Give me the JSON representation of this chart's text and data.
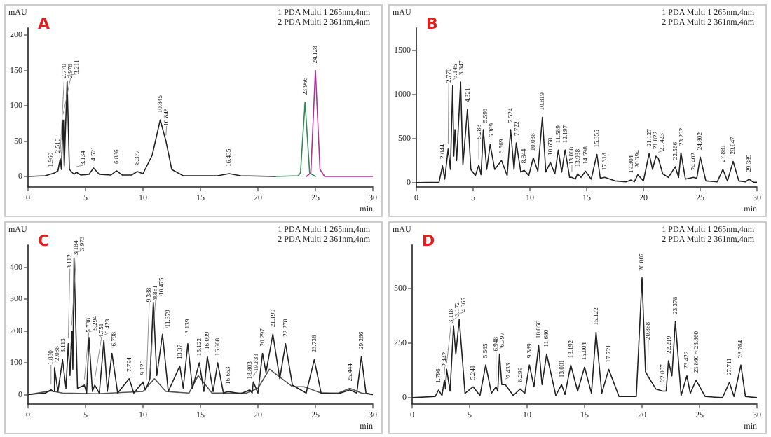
{
  "chart_data": [
    {
      "type": "line",
      "title": "A",
      "xlabel": "min",
      "ylabel": "mAU",
      "xlim": [
        0,
        30
      ],
      "xticks": [
        0,
        5,
        10,
        15,
        20,
        25,
        30
      ],
      "ylim": [
        -15,
        210
      ],
      "yticks": [
        0,
        50,
        100,
        150,
        200
      ],
      "annotations": [
        "1 PDA Multi 1 265nm,4nm",
        "2 PDA Multi 2 361nm,4nm",
        {
          "text": "1.960",
          "x": 2.0,
          "y": 3
        },
        {
          "text": "2.516",
          "x": 2.6,
          "y": 20
        },
        {
          "text": "2.770",
          "x": 2.8,
          "y": 25
        },
        {
          "text": "2.976",
          "x": 3.05,
          "y": 80
        },
        {
          "text": "3.211",
          "x": 3.4,
          "y": 135
        },
        {
          "text": "3.134",
          "x": 4.2,
          "y": 6
        },
        {
          "text": "4.521",
          "x": 5.7,
          "y": 12
        },
        {
          "text": "6.886",
          "x": 7.7,
          "y": 8
        },
        {
          "text": "8.377",
          "x": 9.5,
          "y": 7
        },
        {
          "text": "10.845",
          "x": 11.5,
          "y": 80
        },
        {
          "text": "10.848",
          "x": 12.0,
          "y": 50
        },
        {
          "text": "16.435",
          "x": 17.5,
          "y": 4
        },
        {
          "text": "23.966",
          "x": 24.1,
          "y": 105
        },
        {
          "text": "24.128",
          "x": 25.0,
          "y": 150
        }
      ],
      "series": [
        {
          "color": "#222222",
          "x": [
            0,
            1.5,
            2.3,
            2.6,
            2.8,
            2.9,
            3.05,
            3.15,
            3.4,
            3.6,
            4.0,
            4.2,
            4.6,
            5.3,
            5.7,
            6.2,
            7.2,
            7.7,
            8.2,
            9.0,
            9.5,
            10.0,
            10.8,
            11.5,
            12.0,
            12.5,
            13.5,
            16.5,
            17.5,
            18.5,
            21.5
          ],
          "values": [
            0,
            1,
            5,
            8,
            25,
            10,
            80,
            15,
            135,
            10,
            3,
            6,
            2,
            3,
            12,
            3,
            2,
            8,
            2,
            2,
            7,
            4,
            30,
            80,
            50,
            10,
            1,
            1,
            4,
            1,
            0
          ]
        },
        {
          "color": "#2e8b57",
          "x": [
            21.5,
            23.5,
            23.7,
            24.1,
            24.5,
            25.0
          ],
          "values": [
            0,
            1,
            5,
            105,
            5,
            0
          ]
        },
        {
          "color": "#b0309f",
          "x": [
            24.2,
            24.6,
            25.0,
            25.4,
            25.8,
            30
          ],
          "values": [
            0,
            5,
            150,
            10,
            0,
            0
          ]
        }
      ]
    },
    {
      "type": "line",
      "title": "B",
      "xlabel": "min",
      "ylabel": "mAU",
      "xlim": [
        0,
        30
      ],
      "xticks": [
        0,
        5,
        10,
        15,
        20,
        25,
        30
      ],
      "ylim": [
        -50,
        1750
      ],
      "yticks": [
        0,
        500,
        1000,
        1500
      ],
      "annotations": [
        "1 PDA Multi 1 265nm,4nm",
        "2 PDA Multi 2 361nm,4nm",
        {
          "text": "2.044",
          "x": 2.3,
          "y": 190
        },
        {
          "text": "2.770",
          "x": 2.8,
          "y": 380
        },
        {
          "text": "3.145",
          "x": 3.2,
          "y": 1100
        },
        {
          "text": "3.347",
          "x": 3.9,
          "y": 1140
        },
        {
          "text": "4.321",
          "x": 4.5,
          "y": 830
        },
        {
          "text": "5.288",
          "x": 5.5,
          "y": 200
        },
        {
          "text": "5.593",
          "x": 5.9,
          "y": 600
        },
        {
          "text": "6.389",
          "x": 6.5,
          "y": 430
        },
        {
          "text": "6.569",
          "x": 7.5,
          "y": 250
        },
        {
          "text": "7.524",
          "x": 8.3,
          "y": 600
        },
        {
          "text": "7.722",
          "x": 8.8,
          "y": 450
        },
        {
          "text": "8.844",
          "x": 9.5,
          "y": 140
        },
        {
          "text": "10.038",
          "x": 10.3,
          "y": 280
        },
        {
          "text": "10.819",
          "x": 11.1,
          "y": 740
        },
        {
          "text": "10.658",
          "x": 11.8,
          "y": 230
        },
        {
          "text": "11.589",
          "x": 12.5,
          "y": 370
        },
        {
          "text": "12.197",
          "x": 13.1,
          "y": 370
        },
        {
          "text": "13.008",
          "x": 13.7,
          "y": 60
        },
        {
          "text": "13.938",
          "x": 14.2,
          "y": 100
        },
        {
          "text": "14.598",
          "x": 14.9,
          "y": 130
        },
        {
          "text": "15.355",
          "x": 15.9,
          "y": 320
        },
        {
          "text": "17.318",
          "x": 16.6,
          "y": 60
        },
        {
          "text": "19.304",
          "x": 18.9,
          "y": 30
        },
        {
          "text": "20.394",
          "x": 19.5,
          "y": 90
        },
        {
          "text": "21.127",
          "x": 20.5,
          "y": 330
        },
        {
          "text": "21.822",
          "x": 21.1,
          "y": 300
        },
        {
          "text": "21.423",
          "x": 21.3,
          "y": 280
        },
        {
          "text": "22.566",
          "x": 22.8,
          "y": 180
        },
        {
          "text": "23.232",
          "x": 23.3,
          "y": 340
        },
        {
          "text": "24.402",
          "x": 24.4,
          "y": 60
        },
        {
          "text": "24.802",
          "x": 25.0,
          "y": 290
        },
        {
          "text": "27.881",
          "x": 27.0,
          "y": 150
        },
        {
          "text": "28.847",
          "x": 27.9,
          "y": 240
        },
        {
          "text": "29.389",
          "x": 29.3,
          "y": 40
        }
      ],
      "series": [
        {
          "color": "#222222",
          "x": [
            0,
            2.0,
            2.3,
            2.5,
            2.8,
            3.0,
            3.2,
            3.3,
            3.4,
            3.55,
            3.9,
            4.1,
            4.5,
            4.8,
            5.2,
            5.5,
            5.7,
            5.9,
            6.2,
            6.5,
            6.9,
            7.5,
            8.0,
            8.3,
            8.6,
            8.8,
            9.2,
            9.5,
            9.9,
            10.3,
            10.7,
            11.1,
            11.4,
            11.8,
            12.2,
            12.5,
            12.8,
            13.1,
            13.5,
            13.7,
            14.0,
            14.2,
            14.5,
            14.9,
            15.4,
            15.9,
            16.2,
            16.6,
            17.5,
            18.5,
            18.9,
            19.2,
            19.5,
            20.0,
            20.5,
            20.8,
            21.1,
            21.3,
            21.7,
            22.2,
            22.8,
            23.1,
            23.3,
            23.7,
            24.4,
            24.7,
            25.0,
            25.5,
            26.5,
            27.0,
            27.4,
            27.9,
            28.4,
            29.0,
            29.3,
            29.7,
            30
          ],
          "values": [
            0,
            5,
            190,
            40,
            380,
            150,
            1100,
            300,
            600,
            250,
            1140,
            200,
            830,
            150,
            80,
            200,
            90,
            600,
            150,
            430,
            150,
            250,
            80,
            600,
            150,
            450,
            120,
            140,
            80,
            280,
            130,
            740,
            120,
            230,
            100,
            370,
            120,
            370,
            60,
            60,
            40,
            100,
            60,
            130,
            40,
            320,
            50,
            60,
            20,
            10,
            30,
            10,
            90,
            20,
            330,
            150,
            300,
            280,
            100,
            60,
            180,
            60,
            340,
            40,
            60,
            50,
            290,
            20,
            10,
            150,
            20,
            240,
            20,
            10,
            40,
            5,
            5
          ]
        }
      ]
    },
    {
      "type": "line",
      "title": "C",
      "xlabel": "min",
      "ylabel": "mAU",
      "xlim": [
        0,
        30
      ],
      "xticks": [
        0,
        5,
        10,
        15,
        20,
        25,
        30
      ],
      "ylim": [
        -30,
        470
      ],
      "yticks": [
        0,
        100,
        200,
        300,
        400
      ],
      "annotations": [
        "1 PDA Multi 1 265nm,4nm",
        "2 PDA Multi 2 361nm,4nm",
        {
          "text": "1.880",
          "x": 2.0,
          "y": 15
        },
        {
          "text": "2.088",
          "x": 2.3,
          "y": 85
        },
        {
          "text": "3.113",
          "x": 3.0,
          "y": 110
        },
        {
          "text": "3.112",
          "x": 3.5,
          "y": 160
        },
        {
          "text": "3.184",
          "x": 3.8,
          "y": 200
        },
        {
          "text": "3.973",
          "x": 4.0,
          "y": 430
        },
        {
          "text": "5.738",
          "x": 4.9,
          "y": 30
        },
        {
          "text": "5.294",
          "x": 5.3,
          "y": 180
        },
        {
          "text": "4.751",
          "x": 5.8,
          "y": 30
        },
        {
          "text": "6.423",
          "x": 6.6,
          "y": 170
        },
        {
          "text": "6.798",
          "x": 7.3,
          "y": 130
        },
        {
          "text": "7.794",
          "x": 8.8,
          "y": 50
        },
        {
          "text": "9.120",
          "x": 10.0,
          "y": 40
        },
        {
          "text": "9.388",
          "x": 10.3,
          "y": 30
        },
        {
          "text": "9.881",
          "x": 10.6,
          "y": 50
        },
        {
          "text": "10.475",
          "x": 10.9,
          "y": 290
        },
        {
          "text": "11.379",
          "x": 11.7,
          "y": 190
        },
        {
          "text": "13.37",
          "x": 13.2,
          "y": 90
        },
        {
          "text": "13.139",
          "x": 13.9,
          "y": 160
        },
        {
          "text": "15.122",
          "x": 14.9,
          "y": 100
        },
        {
          "text": "16.099",
          "x": 15.6,
          "y": 120
        },
        {
          "text": "16.668",
          "x": 16.5,
          "y": 100
        },
        {
          "text": "16.653",
          "x": 17.4,
          "y": 10
        },
        {
          "text": "18.803",
          "x": 19.3,
          "y": 15
        },
        {
          "text": "19.833",
          "x": 19.6,
          "y": 40
        },
        {
          "text": "20.297",
          "x": 20.4,
          "y": 130
        },
        {
          "text": "21.199",
          "x": 21.3,
          "y": 190
        },
        {
          "text": "22.278",
          "x": 22.4,
          "y": 160
        },
        {
          "text": "23.738",
          "x": 24.9,
          "y": 110
        },
        {
          "text": "25.444",
          "x": 28.0,
          "y": 15
        },
        {
          "text": "29.266",
          "x": 29.0,
          "y": 120
        }
      ],
      "series": [
        {
          "color": "#222222",
          "x": [
            0,
            1.5,
            2.0,
            2.2,
            2.3,
            2.6,
            3.0,
            3.3,
            3.5,
            3.65,
            3.8,
            3.9,
            4.0,
            4.3,
            4.9,
            5.1,
            5.3,
            5.6,
            5.8,
            6.2,
            6.6,
            6.9,
            7.3,
            7.8,
            8.8,
            9.2,
            10.0,
            10.2,
            10.4,
            10.6,
            10.9,
            11.2,
            11.7,
            12.2,
            13.2,
            13.5,
            13.9,
            14.3,
            14.9,
            15.3,
            15.6,
            16.1,
            16.5,
            17.0,
            17.4,
            18.5,
            19.3,
            19.5,
            19.6,
            20.0,
            20.4,
            20.7,
            21.3,
            21.9,
            22.4,
            23.0,
            24.2,
            24.9,
            25.5,
            27.0,
            28.0,
            28.6,
            29.0,
            29.4,
            30
          ],
          "values": [
            0,
            5,
            15,
            10,
            85,
            10,
            110,
            20,
            160,
            60,
            200,
            80,
            430,
            20,
            30,
            5,
            180,
            10,
            30,
            5,
            170,
            10,
            130,
            5,
            50,
            5,
            40,
            15,
            30,
            50,
            290,
            60,
            190,
            10,
            90,
            20,
            160,
            20,
            100,
            10,
            120,
            10,
            100,
            5,
            10,
            3,
            15,
            5,
            40,
            5,
            130,
            70,
            190,
            50,
            160,
            30,
            5,
            110,
            5,
            3,
            15,
            5,
            120,
            5,
            0
          ]
        },
        {
          "color": "#555555",
          "x": [
            0,
            2,
            3,
            6,
            10,
            11,
            12,
            14,
            14.8,
            16,
            19,
            20,
            21,
            23,
            24,
            25.5,
            27,
            28,
            29,
            30
          ],
          "values": [
            0,
            12,
            5,
            3,
            10,
            50,
            10,
            5,
            60,
            5,
            5,
            20,
            80,
            25,
            25,
            5,
            5,
            20,
            5,
            0
          ]
        }
      ]
    },
    {
      "type": "line",
      "title": "D",
      "xlabel": "min",
      "ylabel": "mAU",
      "xlim": [
        0,
        30
      ],
      "xticks": [
        0,
        5,
        10,
        15,
        20,
        25,
        30
      ],
      "ylim": [
        -30,
        700
      ],
      "yticks": [
        0,
        250,
        500
      ],
      "annotations": [
        "1 PDA Multi 1 265nm,4nm",
        "2 PDA Multi 2 361nm,4nm",
        {
          "text": "1.796",
          "x": 2.3,
          "y": 35
        },
        {
          "text": "2.442",
          "x": 2.8,
          "y": 80
        },
        {
          "text": "3.118",
          "x": 3.0,
          "y": 130
        },
        {
          "text": "3.172",
          "x": 3.6,
          "y": 330
        },
        {
          "text": "4.365",
          "x": 4.1,
          "y": 360
        },
        {
          "text": "5.241",
          "x": 5.3,
          "y": 50
        },
        {
          "text": "5.565",
          "x": 6.4,
          "y": 150
        },
        {
          "text": "6.948",
          "x": 7.3,
          "y": 50
        },
        {
          "text": "6.797",
          "x": 7.6,
          "y": 200
        },
        {
          "text": "7.433",
          "x": 8.1,
          "y": 60
        },
        {
          "text": "8.299",
          "x": 9.4,
          "y": 40
        },
        {
          "text": "9.389",
          "x": 10.2,
          "y": 150
        },
        {
          "text": "10.056",
          "x": 11.0,
          "y": 240
        },
        {
          "text": "11.680",
          "x": 11.7,
          "y": 200
        },
        {
          "text": "13.001",
          "x": 13.0,
          "y": 60
        },
        {
          "text": "13.192",
          "x": 13.8,
          "y": 150
        },
        {
          "text": "15.004",
          "x": 15.0,
          "y": 140
        },
        {
          "text": "15.122",
          "x": 16.0,
          "y": 300
        },
        {
          "text": "17.721",
          "x": 17.1,
          "y": 130
        },
        {
          "text": "20.807",
          "x": 20.0,
          "y": 550
        },
        {
          "text": "20.888",
          "x": 20.5,
          "y": 100
        },
        {
          "text": "22.007",
          "x": 21.8,
          "y": 30
        },
        {
          "text": "22.219",
          "x": 22.3,
          "y": 170
        },
        {
          "text": "23.378",
          "x": 22.9,
          "y": 350
        },
        {
          "text": "23.422",
          "x": 23.9,
          "y": 100
        },
        {
          "text": "23.860 ~ 23.860",
          "x": 24.7,
          "y": 80
        },
        {
          "text": "27.711",
          "x": 27.6,
          "y": 70
        },
        {
          "text": "28.764",
          "x": 28.6,
          "y": 150
        }
      ],
      "series": [
        {
          "color": "#222222",
          "x": [
            0,
            2.0,
            2.3,
            2.6,
            2.8,
            2.9,
            3.0,
            3.3,
            3.6,
            3.8,
            4.1,
            4.6,
            5.3,
            5.9,
            6.4,
            6.9,
            7.3,
            7.45,
            7.6,
            7.8,
            8.1,
            8.8,
            9.4,
            9.8,
            10.2,
            10.6,
            11.0,
            11.3,
            11.7,
            12.5,
            13.0,
            13.3,
            13.8,
            14.4,
            15.0,
            15.6,
            16.0,
            16.5,
            17.1,
            18.0,
            19.5,
            20.0,
            20.3,
            20.5,
            21.2,
            21.8,
            22.1,
            22.3,
            22.6,
            22.9,
            23.4,
            23.9,
            24.2,
            24.7,
            25.5,
            27.0,
            27.6,
            28.0,
            28.6,
            29.0,
            30
          ],
          "values": [
            0,
            5,
            35,
            10,
            80,
            40,
            130,
            30,
            330,
            200,
            360,
            20,
            50,
            10,
            150,
            20,
            50,
            30,
            200,
            60,
            60,
            10,
            40,
            20,
            150,
            50,
            240,
            60,
            200,
            10,
            60,
            15,
            150,
            30,
            140,
            20,
            300,
            20,
            130,
            5,
            5,
            550,
            120,
            100,
            40,
            30,
            30,
            170,
            100,
            350,
            10,
            100,
            20,
            80,
            5,
            0,
            70,
            5,
            150,
            5,
            0
          ]
        }
      ]
    }
  ]
}
